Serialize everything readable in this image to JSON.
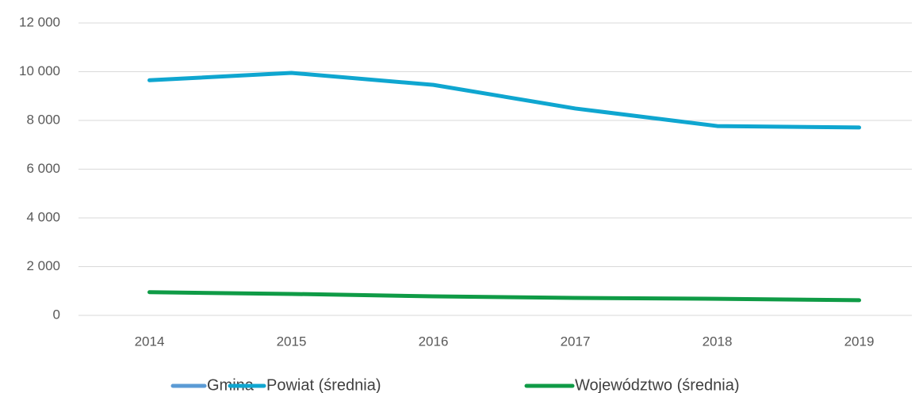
{
  "chart_data": {
    "type": "line",
    "categories": [
      "2014",
      "2015",
      "2016",
      "2017",
      "2018",
      "2019"
    ],
    "series": [
      {
        "name": "Gmina",
        "color": "#5b9bd5",
        "values": [
          null,
          null,
          null,
          null,
          null,
          null
        ]
      },
      {
        "name": "Powiat (średnia)",
        "color": "#0fa6d0",
        "values": [
          9650,
          9950,
          9460,
          8490,
          7770,
          7710
        ]
      },
      {
        "name": "Województwo (średnia)",
        "color": "#0f9b46",
        "values": [
          950,
          880,
          780,
          715,
          680,
          620
        ]
      }
    ],
    "ylim": [
      0,
      12000
    ],
    "yticks": [
      0,
      {
        "value": 2000,
        "label": "2 000"
      },
      {
        "value": 4000,
        "label": "4 000"
      },
      {
        "value": 6000,
        "label": "6 000"
      },
      {
        "value": 8000,
        "label": "8 000"
      },
      {
        "value": 10000,
        "label": "10 000"
      },
      {
        "value": 12000,
        "label": "12 000"
      }
    ],
    "grid": true,
    "legend": "bottom"
  }
}
